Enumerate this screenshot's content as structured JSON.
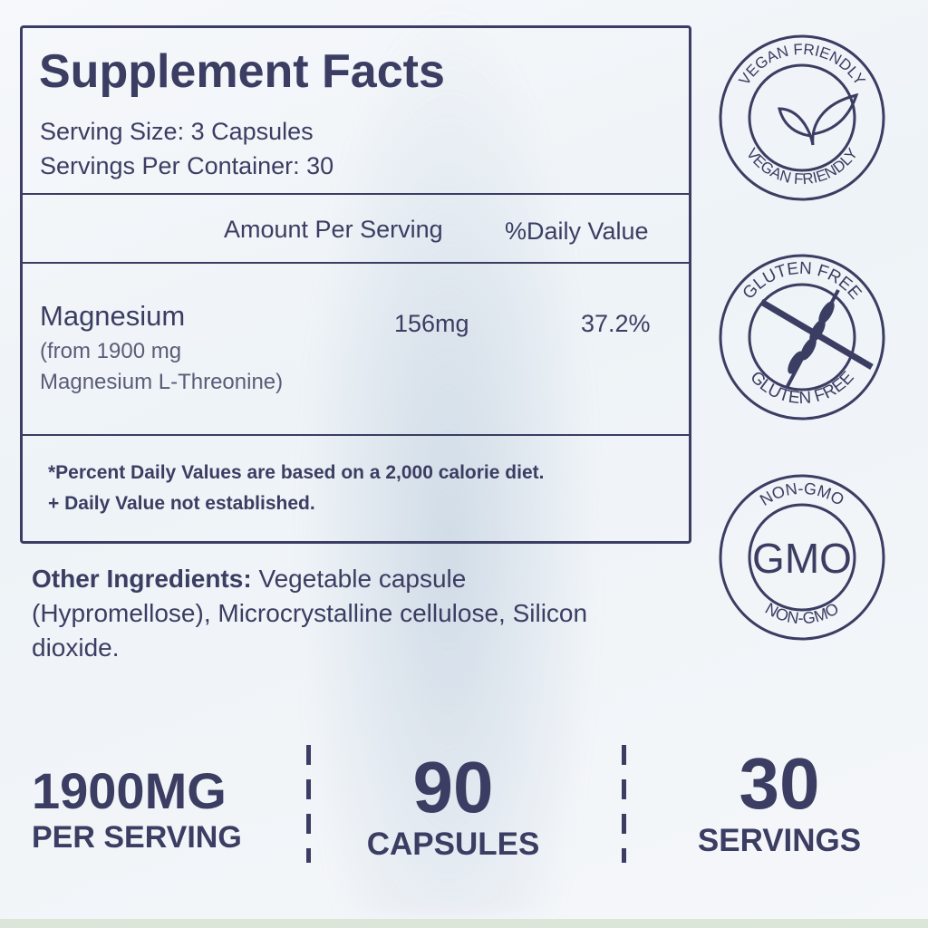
{
  "facts": {
    "title": "Supplement Facts",
    "serving_size": "Serving Size: 3 Capsules",
    "servings_per_container": "Servings Per Container: 30",
    "col_amount": "Amount Per Serving",
    "col_dv": "%Daily Value",
    "nutrient": "Magnesium",
    "nutrient_source1": "(from 1900 mg",
    "nutrient_source2": "Magnesium L-Threonine)",
    "amount": "156mg",
    "dv": "37.2%",
    "footnote1": "*Percent Daily Values are based on a 2,000 calorie diet.",
    "footnote2": "+ Daily Value not established."
  },
  "other": {
    "label": "Other Ingredients:",
    "line1": " Vegetable capsule",
    "line2": "(Hypromellose), Microcrystalline cellulose, Silicon",
    "line3": "dioxide."
  },
  "badges": {
    "vegan": "VEGAN FRIENDLY",
    "vegan_icon": "leaf-icon",
    "gluten": "GLUTEN FREE",
    "gluten_icon": "wheat-crossed-icon",
    "gmo_ring": "NON-GMO",
    "gmo_center": "GMO"
  },
  "stats": [
    {
      "value": "1900MG",
      "label": "PER SERVING"
    },
    {
      "value": "90",
      "label": "CAPSULES"
    },
    {
      "value": "30",
      "label": "SERVINGS"
    }
  ],
  "colors": {
    "text": "#3b3d62",
    "strip": "#dce6d8"
  }
}
